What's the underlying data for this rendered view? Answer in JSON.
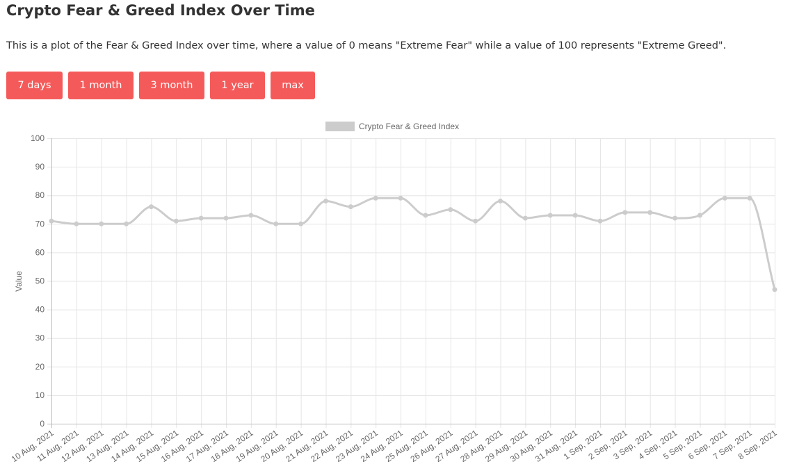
{
  "page": {
    "title": "Crypto Fear & Greed Index Over Time",
    "description": "This is a plot of the Fear & Greed Index over time, where a value of 0 means \"Extreme Fear\" while a value of 100 represents \"Extreme Greed\"."
  },
  "range_buttons": [
    {
      "label": "7 days"
    },
    {
      "label": "1 month"
    },
    {
      "label": "3 month"
    },
    {
      "label": "1 year"
    },
    {
      "label": "max"
    }
  ],
  "colors": {
    "button_bg": "#f55a5a",
    "button_text": "#ffffff",
    "series_line": "#cccccc",
    "grid": "#e5e5e5",
    "tick_text": "#666666"
  },
  "chart_data": {
    "type": "line",
    "legend_position": "top",
    "grid": true,
    "ylabel": "Value",
    "xlabel": "",
    "ylim": [
      0,
      100
    ],
    "yticks": [
      0,
      10,
      20,
      30,
      40,
      50,
      60,
      70,
      80,
      90,
      100
    ],
    "categories": [
      "10 Aug, 2021",
      "11 Aug, 2021",
      "12 Aug, 2021",
      "13 Aug, 2021",
      "14 Aug, 2021",
      "15 Aug, 2021",
      "16 Aug, 2021",
      "17 Aug, 2021",
      "18 Aug, 2021",
      "19 Aug, 2021",
      "20 Aug, 2021",
      "21 Aug, 2021",
      "22 Aug, 2021",
      "23 Aug, 2021",
      "24 Aug, 2021",
      "25 Aug, 2021",
      "26 Aug, 2021",
      "27 Aug, 2021",
      "28 Aug, 2021",
      "29 Aug, 2021",
      "30 Aug, 2021",
      "31 Aug, 2021",
      "1 Sep, 2021",
      "2 Sep, 2021",
      "3 Sep, 2021",
      "4 Sep, 2021",
      "5 Sep, 2021",
      "6 Sep, 2021",
      "7 Sep, 2021",
      "8 Sep, 2021"
    ],
    "series": [
      {
        "name": "Crypto Fear & Greed Index",
        "values": [
          71,
          70,
          70,
          70,
          76,
          71,
          72,
          72,
          73,
          70,
          70,
          78,
          76,
          79,
          79,
          73,
          75,
          71,
          78,
          72,
          73,
          73,
          71,
          74,
          74,
          72,
          73,
          79,
          79,
          47
        ]
      }
    ]
  }
}
